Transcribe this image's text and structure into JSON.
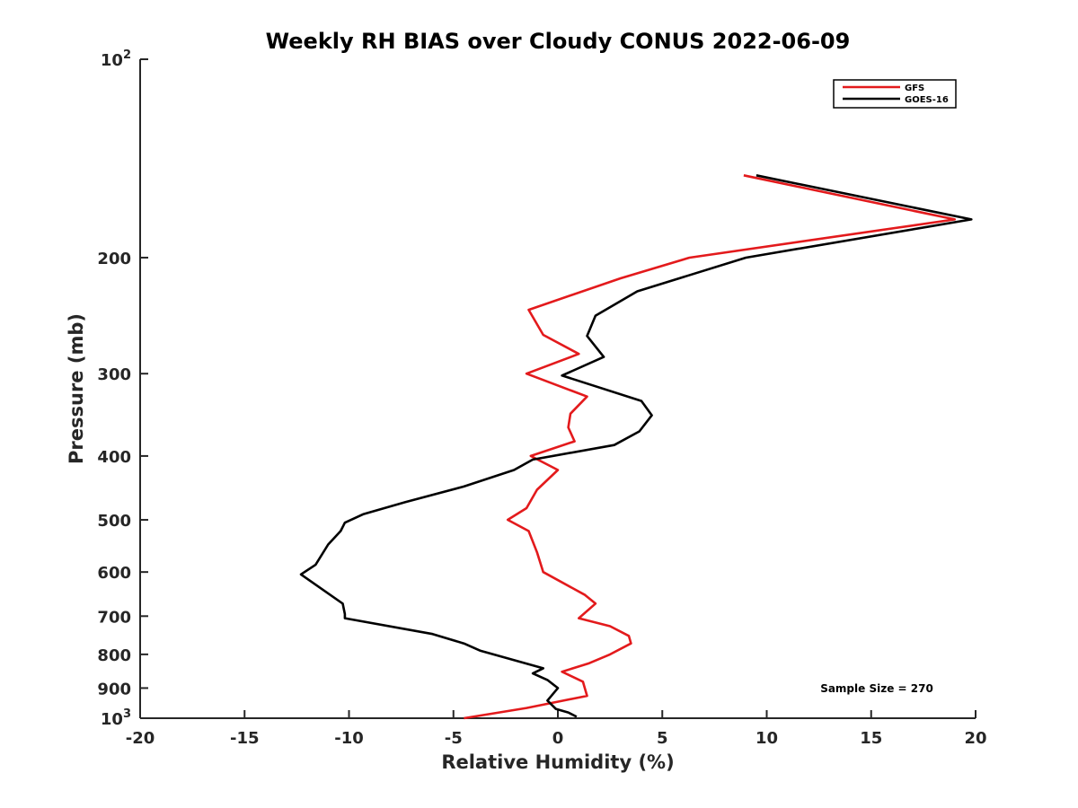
{
  "chart_data": {
    "type": "line",
    "title": "Weekly RH BIAS over Cloudy CONUS 2022-06-09",
    "xlabel": "Relative Humidity (%)",
    "ylabel": "Pressure (mb)",
    "xlim": [
      -20,
      20
    ],
    "ylim": [
      100,
      1000
    ],
    "y_scale": "log",
    "y_reversed": true,
    "grid": false,
    "legend_position": "top-right",
    "x_ticks": [
      "-20",
      "-15",
      "-10",
      "-5",
      "0",
      "5",
      "10",
      "15",
      "20"
    ],
    "x_tick_values": [
      -20,
      -15,
      -10,
      -5,
      0,
      5,
      10,
      15,
      20
    ],
    "y_ticks": [
      {
        "value": 100,
        "base": "10",
        "exp": "2"
      },
      {
        "value": 200,
        "base": "200",
        "exp": ""
      },
      {
        "value": 300,
        "base": "300",
        "exp": ""
      },
      {
        "value": 400,
        "base": "400",
        "exp": ""
      },
      {
        "value": 500,
        "base": "500",
        "exp": ""
      },
      {
        "value": 600,
        "base": "600",
        "exp": ""
      },
      {
        "value": 700,
        "base": "700",
        "exp": ""
      },
      {
        "value": 800,
        "base": "800",
        "exp": ""
      },
      {
        "value": 900,
        "base": "900",
        "exp": ""
      },
      {
        "value": 1000,
        "base": "10",
        "exp": "3"
      }
    ],
    "series": [
      {
        "name": "GFS",
        "color": "#e31a1c",
        "points": [
          {
            "x": 8.9,
            "p": 150
          },
          {
            "x": 19.0,
            "p": 175
          },
          {
            "x": 6.3,
            "p": 200
          },
          {
            "x": 3.0,
            "p": 215
          },
          {
            "x": -1.4,
            "p": 240
          },
          {
            "x": -0.7,
            "p": 262
          },
          {
            "x": 1.0,
            "p": 280
          },
          {
            "x": -1.5,
            "p": 300
          },
          {
            "x": 1.4,
            "p": 325
          },
          {
            "x": 0.6,
            "p": 345
          },
          {
            "x": 0.5,
            "p": 362
          },
          {
            "x": 0.8,
            "p": 380
          },
          {
            "x": -1.3,
            "p": 400
          },
          {
            "x": 0.0,
            "p": 420
          },
          {
            "x": -1.0,
            "p": 450
          },
          {
            "x": -1.5,
            "p": 480
          },
          {
            "x": -2.4,
            "p": 500
          },
          {
            "x": -1.4,
            "p": 520
          },
          {
            "x": -1.0,
            "p": 560
          },
          {
            "x": -0.7,
            "p": 600
          },
          {
            "x": 1.3,
            "p": 650
          },
          {
            "x": 1.8,
            "p": 670
          },
          {
            "x": 1.0,
            "p": 705
          },
          {
            "x": 2.5,
            "p": 725
          },
          {
            "x": 3.4,
            "p": 750
          },
          {
            "x": 3.5,
            "p": 770
          },
          {
            "x": 2.5,
            "p": 800
          },
          {
            "x": 1.5,
            "p": 825
          },
          {
            "x": 0.2,
            "p": 850
          },
          {
            "x": 1.2,
            "p": 880
          },
          {
            "x": 1.4,
            "p": 925
          },
          {
            "x": -1.5,
            "p": 965
          },
          {
            "x": -4.5,
            "p": 1000
          }
        ]
      },
      {
        "name": "GOES-16",
        "color": "#000000",
        "points": [
          {
            "x": 9.5,
            "p": 150
          },
          {
            "x": 19.8,
            "p": 175
          },
          {
            "x": 9.0,
            "p": 200
          },
          {
            "x": 3.8,
            "p": 225
          },
          {
            "x": 1.8,
            "p": 245
          },
          {
            "x": 1.4,
            "p": 263
          },
          {
            "x": 2.2,
            "p": 283
          },
          {
            "x": 0.2,
            "p": 302
          },
          {
            "x": 4.0,
            "p": 330
          },
          {
            "x": 4.5,
            "p": 347
          },
          {
            "x": 3.9,
            "p": 367
          },
          {
            "x": 2.7,
            "p": 385
          },
          {
            "x": -1.2,
            "p": 405
          },
          {
            "x": -2.1,
            "p": 420
          },
          {
            "x": -4.5,
            "p": 445
          },
          {
            "x": -7.3,
            "p": 470
          },
          {
            "x": -9.3,
            "p": 490
          },
          {
            "x": -10.2,
            "p": 505
          },
          {
            "x": -10.4,
            "p": 520
          },
          {
            "x": -11.0,
            "p": 545
          },
          {
            "x": -11.6,
            "p": 585
          },
          {
            "x": -12.3,
            "p": 605
          },
          {
            "x": -10.3,
            "p": 670
          },
          {
            "x": -10.2,
            "p": 695
          },
          {
            "x": -10.2,
            "p": 705
          },
          {
            "x": -6.0,
            "p": 745
          },
          {
            "x": -4.5,
            "p": 770
          },
          {
            "x": -3.7,
            "p": 790
          },
          {
            "x": -0.7,
            "p": 840
          },
          {
            "x": -1.2,
            "p": 855
          },
          {
            "x": -0.5,
            "p": 875
          },
          {
            "x": 0.0,
            "p": 900
          },
          {
            "x": -0.5,
            "p": 940
          },
          {
            "x": -0.1,
            "p": 968
          },
          {
            "x": 0.5,
            "p": 980
          },
          {
            "x": 0.9,
            "p": 995
          }
        ]
      }
    ],
    "annotation": "Sample Size = 270"
  }
}
